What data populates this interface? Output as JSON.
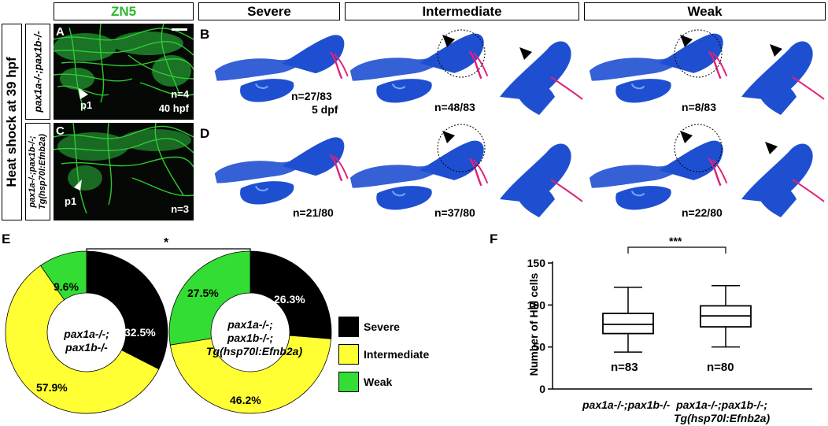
{
  "headers": {
    "zn5": "ZN5",
    "severe": "Severe",
    "intermediate": "Intermediate",
    "weak": "Weak"
  },
  "side_label": "Heat shock at 39 hpf",
  "row_labels": {
    "top": "pax1a-/-;pax1b-/-",
    "bottom_line1": "pax1a-/-;pax1b-/-;",
    "bottom_line2": "Tg(hsp70l:Efnb2a)"
  },
  "panel_letters": {
    "a": "A",
    "b": "B",
    "c": "C",
    "d": "D",
    "e": "E",
    "f": "F"
  },
  "panel_a": {
    "marker": "p1",
    "n": "n=4",
    "stage": "40 hpf"
  },
  "panel_c": {
    "marker": "p1",
    "n": "n=3"
  },
  "panel_b": {
    "severe_n": "n=27/83",
    "severe_stage": "5 dpf",
    "intermediate_n": "n=48/83",
    "weak_n": "n=8/83"
  },
  "panel_d": {
    "severe_n": "n=21/80",
    "intermediate_n": "n=37/80",
    "weak_n": "n=22/80"
  },
  "colors": {
    "severe": "#000000",
    "intermediate": "#ffff33",
    "weak": "#33dd33",
    "zn5": "#2ecc40",
    "cartilage": "#1f4fd1",
    "bone": "#e0217a"
  },
  "panel_e": {
    "significance": "*",
    "donut1": {
      "center_line1": "pax1a-/-;",
      "center_line2": "pax1b-/-",
      "labels": {
        "severe": "32.5%",
        "intermediate": "57.9%",
        "weak": "9.6%"
      }
    },
    "donut2": {
      "center_line1": "pax1a-/-;",
      "center_line2": "pax1b-/-;",
      "center_line3": "Tg(hsp70l:Efnb2a)",
      "labels": {
        "severe": "26.3%",
        "intermediate": "46.2%",
        "weak": "27.5%"
      }
    },
    "legend": {
      "severe": "Severe",
      "intermediate": "Intermediate",
      "weak": "Weak"
    }
  },
  "panel_f": {
    "ylabel": "Number of HM cells",
    "significance": "***",
    "n1": "n=83",
    "n2": "n=80",
    "cat1": "pax1a-/-;pax1b-/-",
    "cat2_line1": "pax1a-/-;pax1b-/-;",
    "cat2_line2": "Tg(hsp70l:Efnb2a)"
  },
  "chart_data": [
    {
      "type": "pie",
      "categories": [
        "Severe",
        "Intermediate",
        "Weak"
      ],
      "series": [
        {
          "values": [
            32.5,
            57.9,
            9.6
          ]
        },
        {
          "values": [
            26.3,
            46.2,
            27.5
          ]
        }
      ]
    },
    {
      "type": "box",
      "ylabel": "Number of HM cells",
      "ylim": [
        0,
        150
      ],
      "yticks": [
        0,
        50,
        100,
        150
      ],
      "categories": [
        "pax1a-/-;pax1b-/-",
        "pax1a-/-;pax1b-/-;Tg(hsp70l:Efnb2a)"
      ],
      "boxes": [
        {
          "min": 44,
          "q1": 66,
          "median": 77,
          "q3": 90,
          "max": 121
        },
        {
          "min": 50,
          "q1": 74,
          "median": 87,
          "q3": 99,
          "max": 123
        }
      ]
    }
  ]
}
